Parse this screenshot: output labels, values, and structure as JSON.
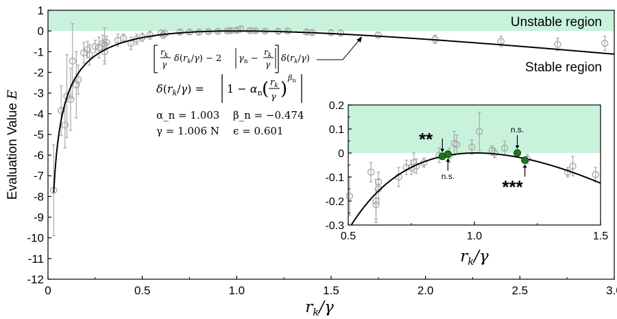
{
  "chart_data": [
    {
      "type": "scatter",
      "xlabel": "r_k/γ",
      "ylabel": "Evaluation Value E",
      "xlim": [
        0,
        3.0
      ],
      "ylim": [
        -12,
        1
      ],
      "x_ticks": [
        "0",
        "0.5",
        "1.0",
        "1.5",
        "2.0",
        "2.5",
        "3.0"
      ],
      "y_ticks": [
        "1",
        "0",
        "-1",
        "-2",
        "-3",
        "-4",
        "-5",
        "-6",
        "-7",
        "-8",
        "-9",
        "-10",
        "-11",
        "-12"
      ],
      "region_labels": {
        "unstable": "Unstable region",
        "stable": "Stable region"
      },
      "unstable_band": [
        0,
        1
      ],
      "params": {
        "alpha_n": 1.003,
        "beta_n": -0.474,
        "gamma": 1.006,
        "gamma_unit": "N",
        "epsilon": 0.601
      },
      "equations": {
        "curve_label": "[(r_k/γ) δ(r_k/γ) − 2 |γ_n − r_k/γ|] δ(r_k/γ)",
        "delta_def": "δ(r_k/γ) = |1 − α_n (r_k/γ)^β_n|",
        "alpha_line": "α_n = 1.003",
        "beta_line": "β_n = −0.474",
        "gamma_line": "γ = 1.006 N",
        "epsilon_line": "ϵ = 0.601"
      },
      "points": [
        {
          "x": 0.03,
          "y": -7.7,
          "err": 2.2
        },
        {
          "x": 0.07,
          "y": -3.85,
          "err": 1.2
        },
        {
          "x": 0.09,
          "y": -4.55,
          "err": 1.1
        },
        {
          "x": 0.1,
          "y": -3.15,
          "err": 2.0
        },
        {
          "x": 0.12,
          "y": -3.3,
          "err": 1.5
        },
        {
          "x": 0.13,
          "y": -1.45,
          "err": 1.8
        },
        {
          "x": 0.15,
          "y": -2.6,
          "err": 1.6
        },
        {
          "x": 0.16,
          "y": -2.35,
          "err": 0.7
        },
        {
          "x": 0.19,
          "y": -1.05,
          "err": 0.5
        },
        {
          "x": 0.21,
          "y": -0.9,
          "err": 0.4
        },
        {
          "x": 0.22,
          "y": -1.15,
          "err": 0.5
        },
        {
          "x": 0.25,
          "y": -0.75,
          "err": 0.3
        },
        {
          "x": 0.27,
          "y": -0.8,
          "err": 0.5
        },
        {
          "x": 0.29,
          "y": -0.6,
          "err": 0.4
        },
        {
          "x": 0.3,
          "y": -0.65,
          "err": 0.8
        },
        {
          "x": 0.3,
          "y": -1.0,
          "err": 0.6
        },
        {
          "x": 0.31,
          "y": -0.55,
          "err": 0.3
        },
        {
          "x": 0.37,
          "y": -0.45,
          "err": 0.3
        },
        {
          "x": 0.4,
          "y": -0.35,
          "err": 0.2
        },
        {
          "x": 0.44,
          "y": -0.6,
          "err": 0.3
        },
        {
          "x": 0.47,
          "y": -0.4,
          "err": 0.25
        },
        {
          "x": 0.5,
          "y": -0.3,
          "err": 0.2
        },
        {
          "x": 0.54,
          "y": -0.2,
          "err": 0.2
        },
        {
          "x": 0.6,
          "y": -0.1,
          "err": 0.15
        },
        {
          "x": 0.61,
          "y": -0.2,
          "err": 0.15
        },
        {
          "x": 0.62,
          "y": -0.12,
          "err": 0.15
        },
        {
          "x": 0.7,
          "y": -0.05,
          "err": 0.1
        },
        {
          "x": 0.75,
          "y": -0.05,
          "err": 0.1
        },
        {
          "x": 0.8,
          "y": -0.05,
          "err": 0.1
        },
        {
          "x": 0.85,
          "y": -0.03,
          "err": 0.08
        },
        {
          "x": 0.9,
          "y": -0.02,
          "err": 0.08
        },
        {
          "x": 0.95,
          "y": 0.0,
          "err": 0.08
        },
        {
          "x": 0.97,
          "y": 0.02,
          "err": 0.1
        },
        {
          "x": 1.0,
          "y": 0.03,
          "err": 0.1
        },
        {
          "x": 1.02,
          "y": 0.1,
          "err": 0.12
        },
        {
          "x": 1.07,
          "y": 0.02,
          "err": 0.08
        },
        {
          "x": 1.1,
          "y": 0.01,
          "err": 0.08
        },
        {
          "x": 1.15,
          "y": 0.0,
          "err": 0.08
        },
        {
          "x": 1.22,
          "y": -0.02,
          "err": 0.1
        },
        {
          "x": 1.27,
          "y": 0.0,
          "err": 0.08
        },
        {
          "x": 1.37,
          "y": -0.05,
          "err": 0.1
        },
        {
          "x": 1.4,
          "y": -0.08,
          "err": 0.1
        },
        {
          "x": 1.5,
          "y": -0.08,
          "err": 0.1
        },
        {
          "x": 1.55,
          "y": -0.1,
          "err": 0.12
        },
        {
          "x": 1.75,
          "y": -0.2,
          "err": 0.15
        },
        {
          "x": 2.05,
          "y": -0.4,
          "err": 0.2
        },
        {
          "x": 2.4,
          "y": -0.5,
          "err": 0.25
        },
        {
          "x": 2.7,
          "y": -0.65,
          "err": 0.3
        },
        {
          "x": 2.95,
          "y": -0.6,
          "err": 0.35
        }
      ]
    },
    {
      "type": "scatter",
      "inset": true,
      "xlabel": "r_k/γ",
      "xlim": [
        0.5,
        1.5
      ],
      "ylim": [
        -0.3,
        0.2
      ],
      "x_ticks": [
        "0.5",
        "1.0",
        "1.5"
      ],
      "y_ticks": [
        "0.2",
        "0.1",
        "0",
        "-0.1",
        "-0.2",
        "-0.3"
      ],
      "unstable_band": [
        0,
        0.2
      ],
      "points": [
        {
          "x": 0.505,
          "y": -0.18,
          "err": 0.08
        },
        {
          "x": 0.59,
          "y": -0.08,
          "err": 0.04
        },
        {
          "x": 0.61,
          "y": -0.2,
          "err": 0.09
        },
        {
          "x": 0.61,
          "y": -0.215,
          "err": 0.06
        },
        {
          "x": 0.62,
          "y": -0.12,
          "err": 0.04
        },
        {
          "x": 0.62,
          "y": -0.15,
          "err": 0.04
        },
        {
          "x": 0.7,
          "y": -0.1,
          "err": 0.04
        },
        {
          "x": 0.73,
          "y": -0.06,
          "err": 0.03
        },
        {
          "x": 0.75,
          "y": -0.06,
          "err": 0.03
        },
        {
          "x": 0.76,
          "y": -0.04,
          "err": 0.04
        },
        {
          "x": 0.77,
          "y": -0.055,
          "err": 0.03
        },
        {
          "x": 0.8,
          "y": -0.04,
          "err": 0.02
        },
        {
          "x": 0.86,
          "y": -0.01,
          "err": 0.03
        },
        {
          "x": 0.9,
          "y": -0.01,
          "err": 0.03
        },
        {
          "x": 0.92,
          "y": 0.04,
          "err": 0.05
        },
        {
          "x": 0.93,
          "y": 0.035,
          "err": 0.04
        },
        {
          "x": 0.99,
          "y": 0.025,
          "err": 0.03
        },
        {
          "x": 1.02,
          "y": 0.09,
          "err": 0.08
        },
        {
          "x": 1.07,
          "y": 0.01,
          "err": 0.02
        },
        {
          "x": 1.08,
          "y": 0.0,
          "err": 0.02
        },
        {
          "x": 1.12,
          "y": 0.02,
          "err": 0.03
        },
        {
          "x": 1.21,
          "y": -0.025,
          "err": 0.02
        },
        {
          "x": 1.37,
          "y": -0.08,
          "err": 0.02
        },
        {
          "x": 1.39,
          "y": -0.055,
          "err": 0.04
        },
        {
          "x": 1.48,
          "y": -0.09,
          "err": 0.03
        }
      ],
      "highlighted": [
        {
          "x": 0.873,
          "y": -0.014,
          "label": "**",
          "side": "above"
        },
        {
          "x": 0.895,
          "y": -0.005,
          "label": "n.s.",
          "side": "below"
        },
        {
          "x": 1.17,
          "y": 0.0,
          "label": "n.s.",
          "side": "above"
        },
        {
          "x": 1.2,
          "y": -0.03,
          "label": "***",
          "side": "below"
        }
      ],
      "highlight_color": "#1b7a1b"
    }
  ],
  "colors": {
    "band": "#c8f2dc",
    "marker": "#a8a8a8",
    "curve": "#000000",
    "highlight": "#1b7a1b"
  }
}
